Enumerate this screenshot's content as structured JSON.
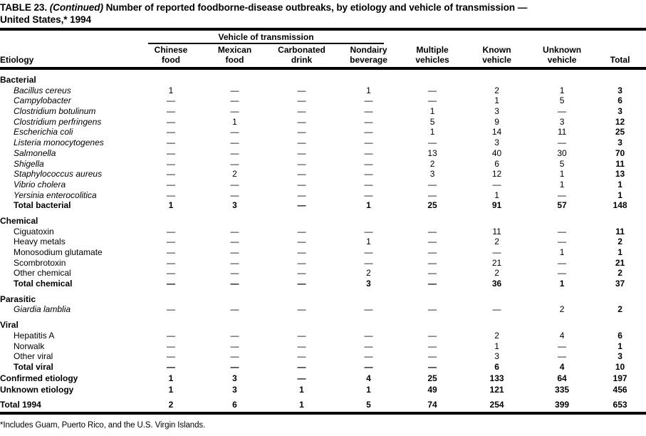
{
  "colors": {
    "text": "#000000",
    "background": "#ffffff",
    "rule": "#000000"
  },
  "title": {
    "part1": "TABLE 23. ",
    "continued": "(Continued)",
    "part2": " Number of reported foodborne-disease outbreaks, by etiology and vehicle of transmission —",
    "line2": "United States,* 1994"
  },
  "table": {
    "spanner": "Vehicle of transmission",
    "etiology_header": "Etiology",
    "columns": [
      {
        "label": "Chinese\nfood"
      },
      {
        "label": "Mexican\nfood"
      },
      {
        "label": "Carbonated\ndrink"
      },
      {
        "label": "Nondairy\nbeverage"
      },
      {
        "label": "Multiple\nvehicles"
      },
      {
        "label": "Known\nvehicle"
      },
      {
        "label": "Unknown\nvehicle"
      },
      {
        "label": "Total"
      }
    ],
    "rows": [
      {
        "type": "section",
        "label": "Bacterial"
      },
      {
        "type": "data",
        "italic": true,
        "label": "Bacillus cereus",
        "values": [
          "1",
          "—",
          "—",
          "1",
          "—",
          "2",
          "1",
          "3"
        ]
      },
      {
        "type": "data",
        "italic": true,
        "label": "Campylobacter",
        "values": [
          "—",
          "—",
          "—",
          "—",
          "—",
          "1",
          "5",
          "6"
        ]
      },
      {
        "type": "data",
        "italic": true,
        "label": "Clostridium botulinum",
        "values": [
          "—",
          "—",
          "—",
          "—",
          "1",
          "3",
          "—",
          "3"
        ]
      },
      {
        "type": "data",
        "italic": true,
        "label": "Clostridium perfringens",
        "values": [
          "—",
          "1",
          "—",
          "—",
          "5",
          "9",
          "3",
          "12"
        ]
      },
      {
        "type": "data",
        "italic": true,
        "label": "Escherichia coli",
        "values": [
          "—",
          "—",
          "—",
          "—",
          "1",
          "14",
          "11",
          "25"
        ]
      },
      {
        "type": "data",
        "italic": true,
        "label": "Listeria monocytogenes",
        "values": [
          "—",
          "—",
          "—",
          "—",
          "—",
          "3",
          "—",
          "3"
        ]
      },
      {
        "type": "data",
        "italic": true,
        "label": "Salmonella",
        "values": [
          "—",
          "—",
          "—",
          "—",
          "13",
          "40",
          "30",
          "70"
        ]
      },
      {
        "type": "data",
        "italic": true,
        "label": "Shigella",
        "values": [
          "—",
          "—",
          "—",
          "—",
          "2",
          "6",
          "5",
          "11"
        ]
      },
      {
        "type": "data",
        "italic": true,
        "label": "Staphylococcus aureus",
        "values": [
          "—",
          "2",
          "—",
          "—",
          "3",
          "12",
          "1",
          "13"
        ]
      },
      {
        "type": "data",
        "italic": true,
        "label": "Vibrio cholera",
        "values": [
          "—",
          "—",
          "—",
          "—",
          "—",
          "—",
          "1",
          "1"
        ]
      },
      {
        "type": "data",
        "italic": true,
        "label": "Yersinia enterocolitica",
        "values": [
          "—",
          "—",
          "—",
          "—",
          "—",
          "1",
          "—",
          "1"
        ]
      },
      {
        "type": "total",
        "label": "Total bacterial",
        "values": [
          "1",
          "3",
          "—",
          "1",
          "25",
          "91",
          "57",
          "148"
        ]
      },
      {
        "type": "section",
        "label": "Chemical"
      },
      {
        "type": "data",
        "italic": false,
        "label": "Ciguatoxin",
        "values": [
          "—",
          "—",
          "—",
          "—",
          "—",
          "11",
          "—",
          "11"
        ]
      },
      {
        "type": "data",
        "italic": false,
        "label": "Heavy metals",
        "values": [
          "—",
          "—",
          "—",
          "1",
          "—",
          "2",
          "—",
          "2"
        ]
      },
      {
        "type": "data",
        "italic": false,
        "label": "Monosodium glutamate",
        "values": [
          "—",
          "—",
          "—",
          "—",
          "—",
          "—",
          "1",
          "1"
        ]
      },
      {
        "type": "data",
        "italic": false,
        "label": "Scombrotoxin",
        "values": [
          "—",
          "—",
          "—",
          "—",
          "—",
          "21",
          "—",
          "21"
        ]
      },
      {
        "type": "data",
        "italic": false,
        "label": "Other chemical",
        "values": [
          "—",
          "—",
          "—",
          "2",
          "—",
          "2",
          "—",
          "2"
        ]
      },
      {
        "type": "total",
        "label": "Total chemical",
        "values": [
          "—",
          "—",
          "—",
          "3",
          "—",
          "36",
          "1",
          "37"
        ]
      },
      {
        "type": "section",
        "label": "Parasitic"
      },
      {
        "type": "data",
        "italic": true,
        "label": "Giardia lamblia",
        "values": [
          "—",
          "—",
          "—",
          "—",
          "—",
          "—",
          "2",
          "2"
        ]
      },
      {
        "type": "section",
        "label": "Viral"
      },
      {
        "type": "data",
        "italic": false,
        "label": "Hepatitis A",
        "values": [
          "—",
          "—",
          "—",
          "—",
          "—",
          "2",
          "4",
          "6"
        ]
      },
      {
        "type": "data",
        "italic": false,
        "label": "Norwalk",
        "values": [
          "—",
          "—",
          "—",
          "—",
          "—",
          "1",
          "—",
          "1"
        ]
      },
      {
        "type": "data",
        "italic": false,
        "label": "Other viral",
        "values": [
          "—",
          "—",
          "—",
          "—",
          "—",
          "3",
          "—",
          "3"
        ]
      },
      {
        "type": "total",
        "label": "Total viral",
        "values": [
          "—",
          "—",
          "—",
          "—",
          "—",
          "6",
          "4",
          "10"
        ]
      },
      {
        "type": "grand",
        "label": "Confirmed etiology",
        "values": [
          "1",
          "3",
          "—",
          "4",
          "25",
          "133",
          "64",
          "197"
        ]
      },
      {
        "type": "grand",
        "label": "Unknown etiology",
        "values": [
          "1",
          "3",
          "1",
          "1",
          "49",
          "121",
          "335",
          "456"
        ]
      },
      {
        "type": "grand",
        "final": true,
        "label": "Total 1994",
        "values": [
          "2",
          "6",
          "1",
          "5",
          "74",
          "254",
          "399",
          "653"
        ]
      }
    ]
  },
  "footnote": "*Includes Guam, Puerto Rico, and the U.S. Virgin Islands."
}
